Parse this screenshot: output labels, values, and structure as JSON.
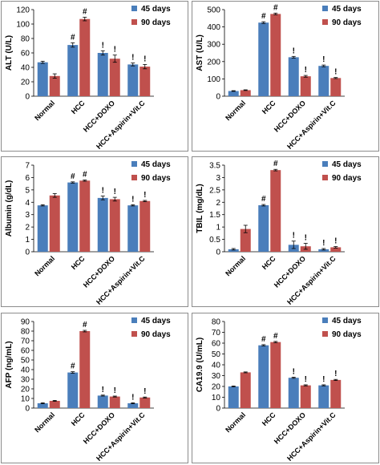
{
  "colors": {
    "series_45": "#4a7ebb",
    "series_90": "#c0504d"
  },
  "chart_data": [
    {
      "type": "bar",
      "ylabel": "ALT (U/L)",
      "categories": [
        "Normal",
        "HCC",
        "HCC+DOXO",
        "HCC+Aspirin+Vit.C"
      ],
      "ylim": [
        0,
        120
      ],
      "yticks": [
        "0",
        "20",
        "40",
        "60",
        "80",
        "100",
        "120"
      ],
      "legend": "top-right",
      "series": [
        {
          "name": "45 days",
          "values": [
            47,
            71,
            60,
            44
          ],
          "errors": [
            1.5,
            3,
            3,
            2
          ],
          "marks": [
            "",
            "#",
            "!",
            "!"
          ]
        },
        {
          "name": "90 days",
          "values": [
            28,
            107,
            52,
            41
          ],
          "errors": [
            3,
            2.5,
            5,
            3
          ],
          "marks": [
            "",
            "#",
            "!",
            "!"
          ]
        }
      ]
    },
    {
      "type": "bar",
      "ylabel": "AST (U/L)",
      "categories": [
        "Normal",
        "HCC",
        "HCC+DOXO",
        "HCC+Aspirin+Vit.C"
      ],
      "ylim": [
        0,
        500
      ],
      "yticks": [
        "0",
        "100",
        "200",
        "300",
        "400",
        "500"
      ],
      "legend": "top-right",
      "series": [
        {
          "name": "45 days",
          "values": [
            30,
            425,
            225,
            175
          ],
          "errors": [
            2,
            5,
            5,
            5
          ],
          "marks": [
            "",
            "#",
            "!",
            "!"
          ]
        },
        {
          "name": "90 days",
          "values": [
            35,
            475,
            115,
            105
          ],
          "errors": [
            2,
            5,
            5,
            3
          ],
          "marks": [
            "",
            "#",
            "!",
            "!"
          ]
        }
      ]
    },
    {
      "type": "bar",
      "ylabel": "Albumin (g/dL)",
      "categories": [
        "Normal",
        "HCC",
        "HCC+DOXO",
        "HCC+Aspirin+Vit.C"
      ],
      "ylim": [
        0,
        7
      ],
      "yticks": [
        "0",
        "1",
        "2",
        "3",
        "4",
        "5",
        "6",
        "7"
      ],
      "legend": "top-right",
      "series": [
        {
          "name": "45 days",
          "values": [
            3.75,
            5.6,
            4.35,
            3.75
          ],
          "errors": [
            0.05,
            0.05,
            0.15,
            0.05
          ],
          "marks": [
            "",
            "#",
            "!",
            "!"
          ]
        },
        {
          "name": "90 days",
          "values": [
            4.55,
            5.75,
            4.25,
            4.1
          ],
          "errors": [
            0.15,
            0.05,
            0.15,
            0.05
          ],
          "marks": [
            "",
            "#",
            "!",
            "!"
          ]
        }
      ]
    },
    {
      "type": "bar",
      "ylabel": "TBIL (mg/dL)",
      "categories": [
        "Normal",
        "HCC",
        "HCC+DOXO",
        "HCC+Aspirin+Vit.C"
      ],
      "ylim": [
        0,
        3.5
      ],
      "yticks": [
        "0",
        "0.5",
        "1",
        "1.5",
        "2",
        "2.5",
        "3",
        "3.5"
      ],
      "legend": "top-right",
      "series": [
        {
          "name": "45 days",
          "values": [
            0.1,
            1.88,
            0.28,
            0.1
          ],
          "errors": [
            0.03,
            0.03,
            0.15,
            0.03
          ],
          "marks": [
            "",
            "#",
            "!",
            "!"
          ]
        },
        {
          "name": "90 days",
          "values": [
            0.92,
            3.3,
            0.22,
            0.18
          ],
          "errors": [
            0.15,
            0.03,
            0.12,
            0.03
          ],
          "marks": [
            "",
            "#",
            "!",
            "!"
          ]
        }
      ]
    },
    {
      "type": "bar",
      "ylabel": "AFP (ng/mL)",
      "categories": [
        "Normal",
        "HCC",
        "HCC+DOXO",
        "HCC+Aspirin+Vit.C"
      ],
      "ylim": [
        0,
        90
      ],
      "yticks": [
        "0",
        "10",
        "20",
        "30",
        "40",
        "50",
        "60",
        "70",
        "80",
        "90"
      ],
      "legend": "top-right",
      "series": [
        {
          "name": "45 days",
          "values": [
            5,
            37,
            13,
            5
          ],
          "errors": [
            0.5,
            0.8,
            0.5,
            0.5
          ],
          "marks": [
            "",
            "#",
            "!",
            "!"
          ]
        },
        {
          "name": "90 days",
          "values": [
            7.5,
            80,
            12,
            11
          ],
          "errors": [
            0.5,
            0.8,
            0.5,
            0.5
          ],
          "marks": [
            "",
            "#",
            "!",
            "!"
          ]
        }
      ]
    },
    {
      "type": "bar",
      "ylabel": "CA19.9 (U/mL)",
      "categories": [
        "Normal",
        "HCC",
        "HCC+DOXO",
        "HCC+Aspirin+Vit.C"
      ],
      "ylim": [
        0,
        80
      ],
      "yticks": [
        "0",
        "10",
        "20",
        "30",
        "40",
        "50",
        "60",
        "70",
        "80"
      ],
      "legend": "top-right",
      "series": [
        {
          "name": "45 days",
          "values": [
            20,
            58,
            28,
            21
          ],
          "errors": [
            0.4,
            0.6,
            0.5,
            0.5
          ],
          "marks": [
            "",
            "#",
            "!",
            "!"
          ]
        },
        {
          "name": "90 days",
          "values": [
            33,
            61,
            21,
            26
          ],
          "errors": [
            0.4,
            0.6,
            0.5,
            0.5
          ],
          "marks": [
            "",
            "#",
            "!",
            "!"
          ]
        }
      ]
    }
  ]
}
